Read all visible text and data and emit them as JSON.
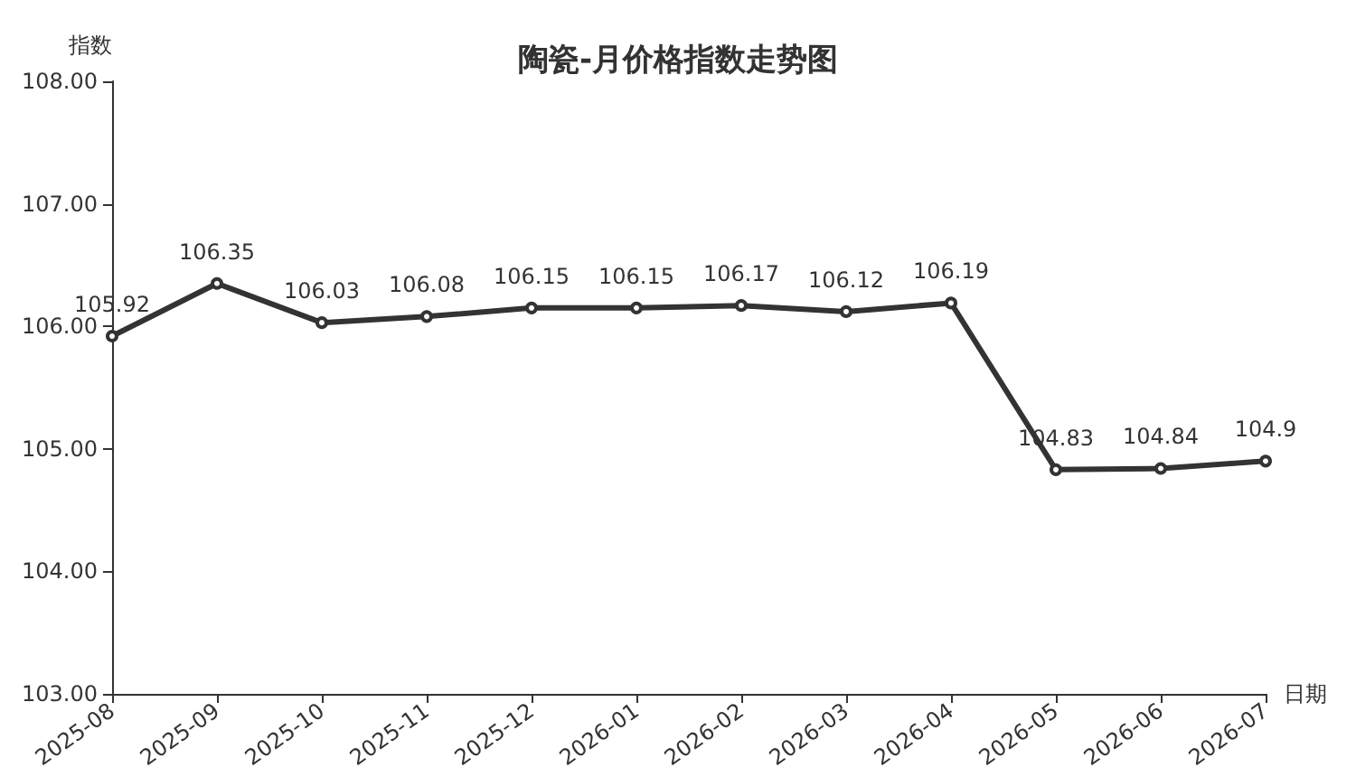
{
  "chart_data": {
    "type": "line",
    "title": "陶瓷-月价格指数走势图",
    "xlabel": "日期",
    "ylabel": "指数",
    "categories": [
      "2025-08",
      "2025-09",
      "2025-10",
      "2025-11",
      "2025-12",
      "2026-01",
      "2026-02",
      "2026-03",
      "2026-04",
      "2026-05",
      "2026-06",
      "2026-07"
    ],
    "series": [
      {
        "color": "#333333",
        "values": [
          105.92,
          106.35,
          106.03,
          106.08,
          106.15,
          106.15,
          106.17,
          106.12,
          106.19,
          104.83,
          104.84,
          104.9
        ]
      }
    ],
    "ylim": [
      103,
      108
    ],
    "yticks": [
      {
        "value": 103,
        "label": "103.00"
      },
      {
        "value": 104,
        "label": "104.00"
      },
      {
        "value": 105,
        "label": "105.00"
      },
      {
        "value": 106,
        "label": "106.00"
      },
      {
        "value": 107,
        "label": "107.00"
      },
      {
        "value": 108,
        "label": "108.00"
      }
    ],
    "data_labels": true,
    "marker": "circle",
    "line_style": "solid",
    "grid": false
  }
}
